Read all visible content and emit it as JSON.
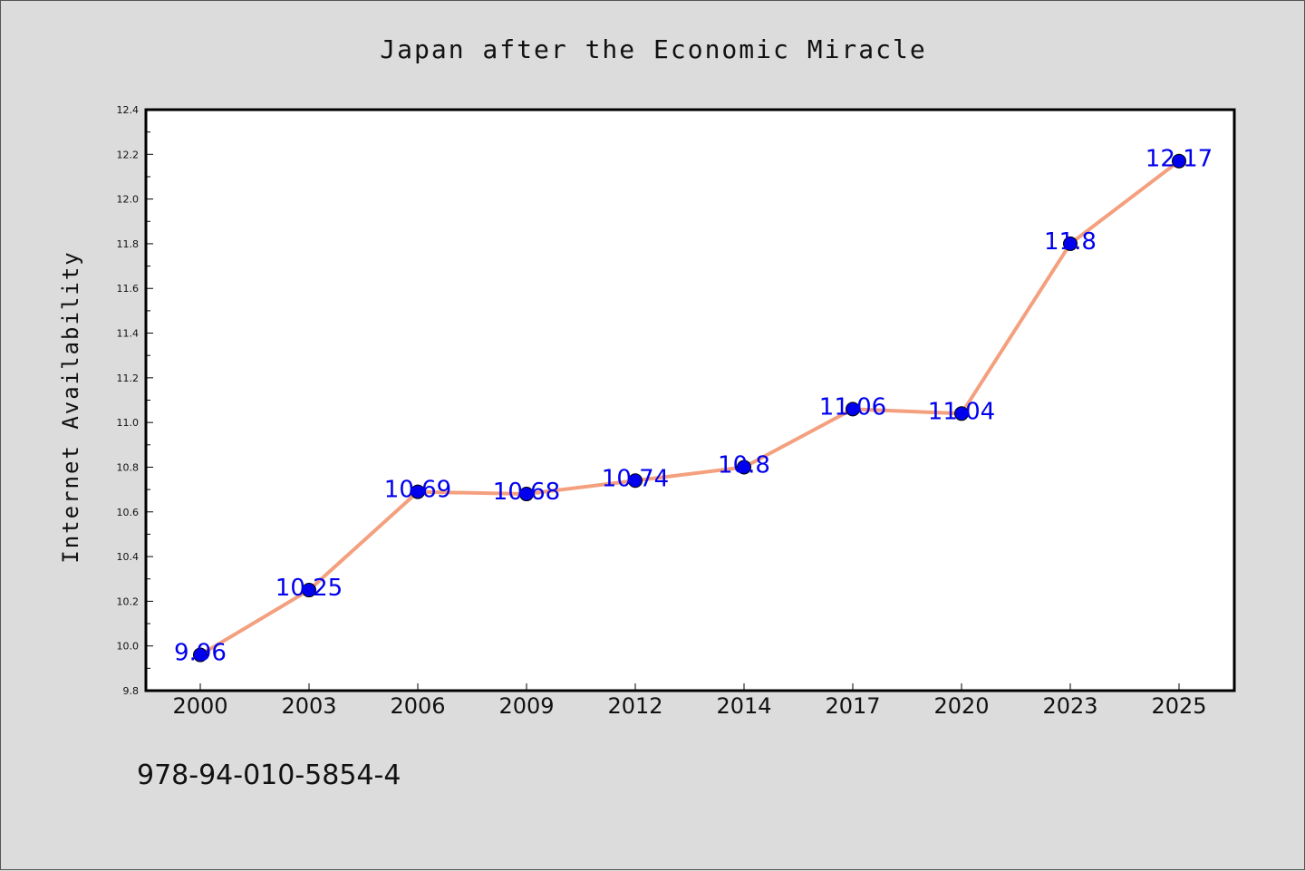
{
  "chart_data": {
    "type": "line",
    "title": "Japan after the Economic Miracle",
    "ylabel": "Internet Availability",
    "xlabel": "",
    "categories": [
      "2000",
      "2003",
      "2006",
      "2009",
      "2012",
      "2014",
      "2017",
      "2020",
      "2023",
      "2025"
    ],
    "series": [
      {
        "values": [
          9.96,
          10.25,
          10.69,
          10.68,
          10.74,
          10.8,
          11.06,
          11.04,
          11.8,
          12.17
        ]
      }
    ],
    "data_labels": [
      "9.96",
      "10.25",
      "10.69",
      "10.68",
      "10.74",
      "10.8",
      "11.06",
      "11.04",
      "11.8",
      "12.17"
    ],
    "ylim": [
      9.8,
      12.4
    ],
    "yticks": [
      "9.8",
      "10.0",
      "10.2",
      "10.4",
      "10.6",
      "10.8",
      "11.0",
      "11.2",
      "11.4",
      "11.6",
      "11.8",
      "12.0",
      "12.2",
      "12.4"
    ],
    "grid": false,
    "colors": {
      "line": "#f4a07e",
      "marker": "#0000ee",
      "label": "#0000ee",
      "background": "#dcdcdc",
      "plot": "#ffffff"
    }
  },
  "footer_text": "978-94-010-5854-4"
}
